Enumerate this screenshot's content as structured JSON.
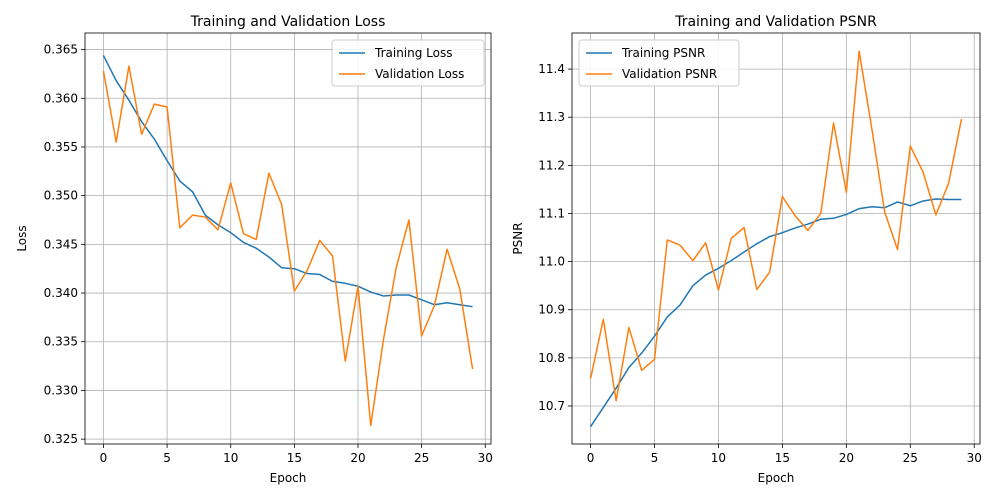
{
  "chart_data": [
    {
      "type": "line",
      "title": "Training and Validation Loss",
      "xlabel": "Epoch",
      "ylabel": "Loss",
      "xlim": [
        -1.45,
        30.45
      ],
      "ylim": [
        0.3245,
        0.3667
      ],
      "xticks": [
        0,
        5,
        10,
        15,
        20,
        25,
        30
      ],
      "yticks": [
        0.325,
        0.33,
        0.335,
        0.34,
        0.345,
        0.35,
        0.355,
        0.36,
        0.365
      ],
      "ytick_labels": [
        "0.325",
        "0.330",
        "0.335",
        "0.340",
        "0.345",
        "0.350",
        "0.355",
        "0.360",
        "0.365"
      ],
      "grid": true,
      "legend": "top-right",
      "x": [
        0,
        1,
        2,
        3,
        4,
        5,
        6,
        7,
        8,
        9,
        10,
        11,
        12,
        13,
        14,
        15,
        16,
        17,
        18,
        19,
        20,
        21,
        22,
        23,
        24,
        25,
        26,
        27,
        28,
        29
      ],
      "series": [
        {
          "name": "Training Loss",
          "color": "#1f77b4",
          "values": [
            0.3644,
            0.3618,
            0.3598,
            0.3576,
            0.3558,
            0.3536,
            0.3515,
            0.3504,
            0.348,
            0.347,
            0.3462,
            0.3452,
            0.3446,
            0.3437,
            0.3426,
            0.3425,
            0.342,
            0.3419,
            0.3412,
            0.341,
            0.3407,
            0.3401,
            0.3397,
            0.3398,
            0.3398,
            0.3393,
            0.3388,
            0.339,
            0.3388,
            0.3386
          ]
        },
        {
          "name": "Validation Loss",
          "color": "#ff7f0e",
          "values": [
            0.3628,
            0.3555,
            0.3633,
            0.3563,
            0.3594,
            0.3591,
            0.3467,
            0.348,
            0.3478,
            0.3465,
            0.3513,
            0.3461,
            0.3455,
            0.3523,
            0.3491,
            0.3402,
            0.3423,
            0.3454,
            0.3438,
            0.333,
            0.3407,
            0.3264,
            0.3352,
            0.3426,
            0.3475,
            0.3356,
            0.3387,
            0.3445,
            0.3404,
            0.3322
          ]
        }
      ]
    },
    {
      "type": "line",
      "title": "Training and Validation PSNR",
      "xlabel": "Epoch",
      "ylabel": "PSNR",
      "xlim": [
        -1.45,
        30.45
      ],
      "ylim": [
        10.621,
        11.475
      ],
      "xticks": [
        0,
        5,
        10,
        15,
        20,
        25,
        30
      ],
      "yticks": [
        10.7,
        10.8,
        10.9,
        11.0,
        11.1,
        11.2,
        11.3,
        11.4
      ],
      "ytick_labels": [
        "10.7",
        "10.8",
        "10.9",
        "11.0",
        "11.1",
        "11.2",
        "11.3",
        "11.4"
      ],
      "grid": true,
      "legend": "top-left",
      "x": [
        0,
        1,
        2,
        3,
        4,
        5,
        6,
        7,
        8,
        9,
        10,
        11,
        12,
        13,
        14,
        15,
        16,
        17,
        18,
        19,
        20,
        21,
        22,
        23,
        24,
        25,
        26,
        27,
        28,
        29
      ],
      "series": [
        {
          "name": "Training PSNR",
          "color": "#1f77b4",
          "values": [
            10.657,
            10.697,
            10.737,
            10.78,
            10.81,
            10.845,
            10.885,
            10.91,
            10.95,
            10.972,
            10.986,
            11.002,
            11.02,
            11.037,
            11.052,
            11.06,
            11.07,
            11.078,
            11.088,
            11.09,
            11.098,
            11.11,
            11.114,
            11.112,
            11.124,
            11.116,
            11.126,
            11.13,
            11.129,
            11.129
          ]
        },
        {
          "name": "Validation PSNR",
          "color": "#ff7f0e",
          "values": [
            10.757,
            10.88,
            10.711,
            10.863,
            10.774,
            10.797,
            11.045,
            11.034,
            11.002,
            11.039,
            10.941,
            11.048,
            11.071,
            10.942,
            10.978,
            11.135,
            11.095,
            11.065,
            11.1,
            11.288,
            11.144,
            11.437,
            11.275,
            11.103,
            11.025,
            11.24,
            11.186,
            11.097,
            11.163,
            11.296
          ]
        }
      ]
    }
  ]
}
